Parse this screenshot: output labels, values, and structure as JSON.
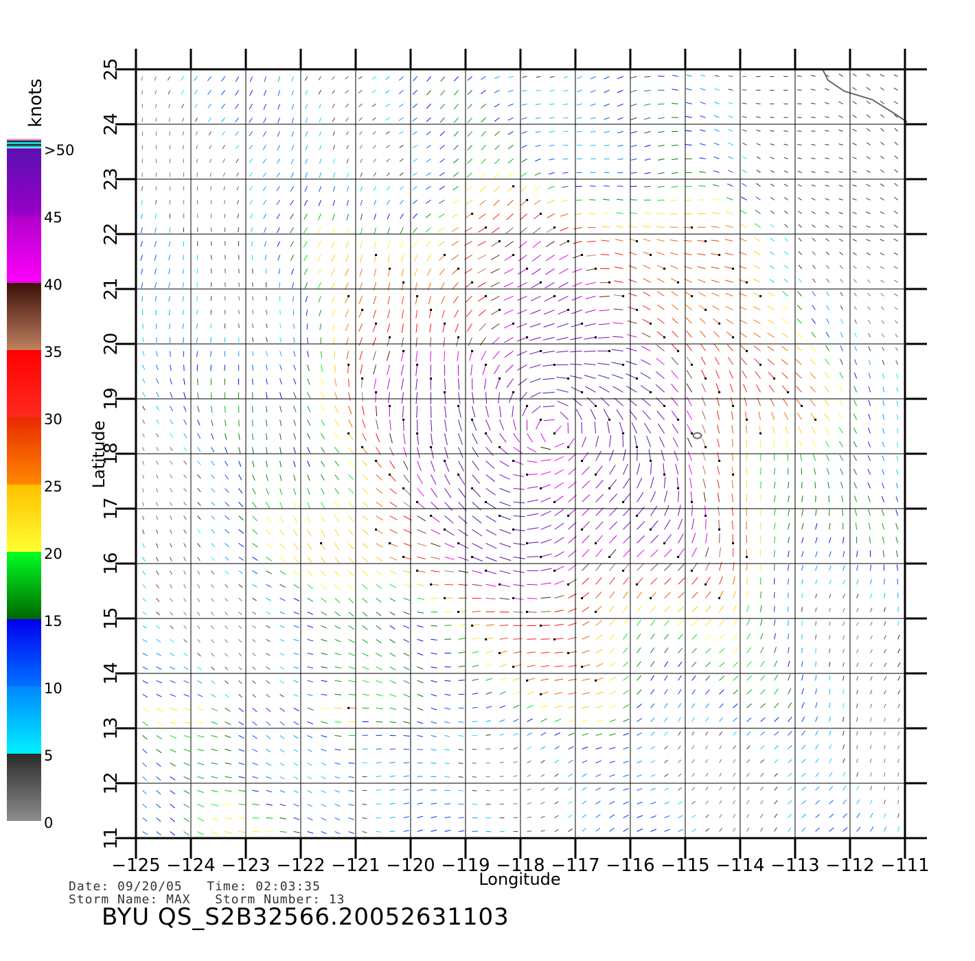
{
  "chart_data": {
    "type": "wind-vector-map",
    "xlabel": "Longitude",
    "ylabel": "Latitude",
    "xlim": [
      -125,
      -111
    ],
    "ylim": [
      11,
      25
    ],
    "x_ticks": [
      -125,
      -124,
      -123,
      -122,
      -121,
      -120,
      -119,
      -118,
      -117,
      -116,
      -115,
      -114,
      -113,
      -112,
      -111
    ],
    "x_tick_labels": [
      "−125",
      "−124",
      "−123",
      "−122",
      "−121",
      "−120",
      "−119",
      "−118",
      "−117",
      "−116",
      "−115",
      "−114",
      "−113",
      "−112",
      "−111"
    ],
    "y_ticks": [
      11,
      12,
      13,
      14,
      15,
      16,
      17,
      18,
      19,
      20,
      21,
      22,
      23,
      24,
      25
    ],
    "y_tick_labels": [
      "11",
      "12",
      "13",
      "14",
      "15",
      "16",
      "17",
      "18",
      "19",
      "20",
      "21",
      "22",
      "23",
      "24",
      "25"
    ],
    "grid": true,
    "colorbar": {
      "unit": "knots",
      "labels": [
        "0",
        "5",
        "10",
        "15",
        "20",
        "25",
        "30",
        "35",
        "40",
        "45",
        ">50"
      ],
      "bands": [
        {
          "from": 0,
          "to": 5,
          "colors": [
            "#8c8c8c",
            "#2a2a2a"
          ]
        },
        {
          "from": 5,
          "to": 10,
          "colors": [
            "#00f0ff",
            "#0088ff"
          ]
        },
        {
          "from": 10,
          "to": 15,
          "colors": [
            "#0070ff",
            "#0000f0"
          ]
        },
        {
          "from": 15,
          "to": 20,
          "colors": [
            "#006600",
            "#00ff22"
          ]
        },
        {
          "from": 20,
          "to": 25,
          "colors": [
            "#ffff30",
            "#ffc000"
          ]
        },
        {
          "from": 25,
          "to": 30,
          "colors": [
            "#ff8800",
            "#e82a00"
          ]
        },
        {
          "from": 30,
          "to": 35,
          "colors": [
            "#ff2a20",
            "#ff0000"
          ]
        },
        {
          "from": 35,
          "to": 40,
          "colors": [
            "#c08060",
            "#3a1008"
          ]
        },
        {
          "from": 40,
          "to": 45,
          "colors": [
            "#ff00ff",
            "#b000c8"
          ]
        },
        {
          "from": 45,
          "to": 50,
          "colors": [
            "#9800c8",
            "#5a10b0"
          ]
        }
      ]
    },
    "storm_center": {
      "lon": -117.4,
      "lat": 18.4
    },
    "land_color": "#666666"
  },
  "info": {
    "date_label": "Date:",
    "date": "09/20/05",
    "time_label": "Time:",
    "time": "02:03:35",
    "storm_name_label": "Storm Name:",
    "storm_name": "MAX",
    "storm_number_label": "Storm Number:",
    "storm_number": "13"
  },
  "title": "BYU QS_S2B32566.20052631103"
}
